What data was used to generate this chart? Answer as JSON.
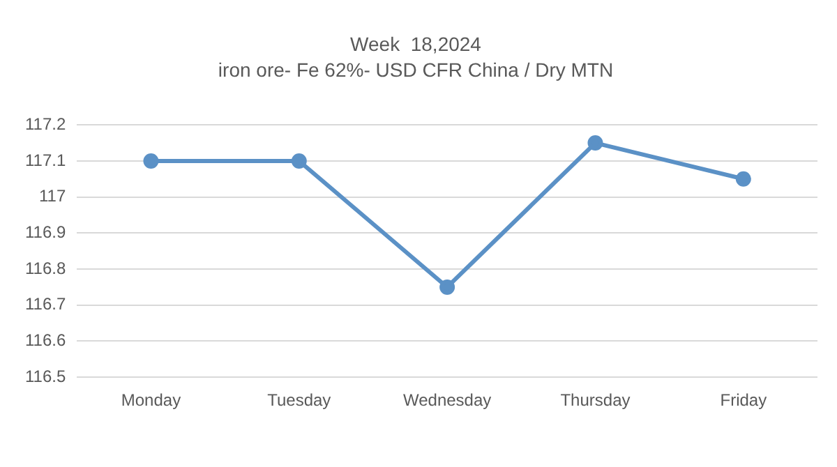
{
  "chart_data": {
    "type": "line",
    "title": "Week  18,2024",
    "subtitle": "iron ore- Fe 62%- USD CFR China / Dry MTN",
    "categories": [
      "Monday",
      "Tuesday",
      "Wednesday",
      "Thursday",
      "Friday"
    ],
    "series": [
      {
        "color": "#5b91c6",
        "values": [
          117.1,
          117.1,
          116.75,
          117.15,
          117.05
        ]
      }
    ],
    "ylim": [
      116.5,
      117.2
    ],
    "yticks": [
      116.5,
      116.6,
      116.7,
      116.8,
      116.9,
      117,
      117.1,
      117.2
    ],
    "grid": "y",
    "legend": false,
    "marker": "circle",
    "line_style": "solid"
  }
}
